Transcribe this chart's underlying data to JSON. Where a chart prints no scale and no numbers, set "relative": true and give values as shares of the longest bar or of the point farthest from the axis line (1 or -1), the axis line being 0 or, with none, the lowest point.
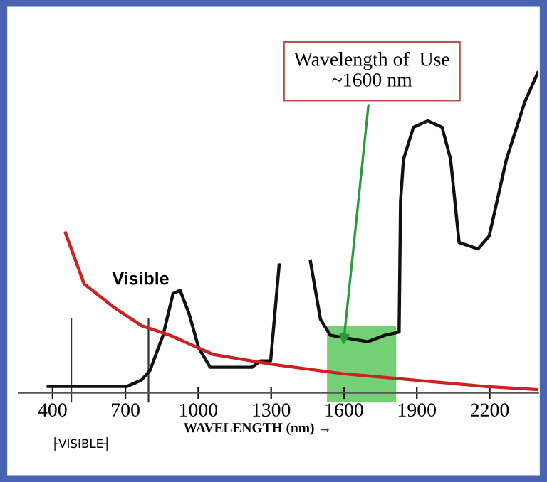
{
  "chart_data": {
    "type": "line",
    "relative": true,
    "xlabel": "WAVELENGTH (nm) →",
    "xlim": [
      260,
      2400
    ],
    "xticks": [
      400,
      700,
      1000,
      1300,
      1600,
      1900,
      2200
    ],
    "series": [
      {
        "color": "#111111",
        "x": [
          382,
          706,
          766,
          801,
          855,
          896,
          925,
          961,
          1002,
          1049,
          1120,
          1221,
          1256,
          1298,
          1333,
          1400,
          1462,
          1503,
          1544,
          1621,
          1698,
          1768,
          1827,
          1833,
          1845,
          1886,
          1945,
          2004,
          2039,
          2074,
          2152,
          2198,
          2269,
          2345,
          2398
        ],
        "values": [
          0.02,
          0.02,
          0.04,
          0.07,
          0.18,
          0.31,
          0.32,
          0.25,
          0.14,
          0.08,
          0.08,
          0.08,
          0.1,
          0.1,
          0.4,
          null,
          0.41,
          0.23,
          0.18,
          0.17,
          0.16,
          0.18,
          0.19,
          0.6,
          0.73,
          0.83,
          0.85,
          0.83,
          0.73,
          0.47,
          0.45,
          0.49,
          0.73,
          0.91,
          1.0
        ]
      },
      {
        "color": "#cc2222",
        "x": [
          453,
          530,
          648,
          766,
          884,
          1061,
          1298,
          1593,
          1888,
          2183,
          2400
        ],
        "values": [
          0.5,
          0.34,
          0.27,
          0.21,
          0.18,
          0.12,
          0.09,
          0.06,
          0.04,
          0.02,
          0.01
        ]
      }
    ],
    "bands": [
      {
        "axis": "x",
        "from": 1530,
        "to": 1815,
        "color": "#5cc85c"
      }
    ],
    "ref_lines": [
      {
        "axis": "x",
        "value": 477,
        "color": "#333333"
      },
      {
        "axis": "x",
        "value": 795,
        "color": "#333333"
      }
    ],
    "annotations": [
      "Visible",
      "Wavelength of  Use\n~1600 nm",
      "├VISIBLE┤"
    ],
    "grid": false,
    "legend": false,
    "marker": "none",
    "line_style": "solid"
  }
}
